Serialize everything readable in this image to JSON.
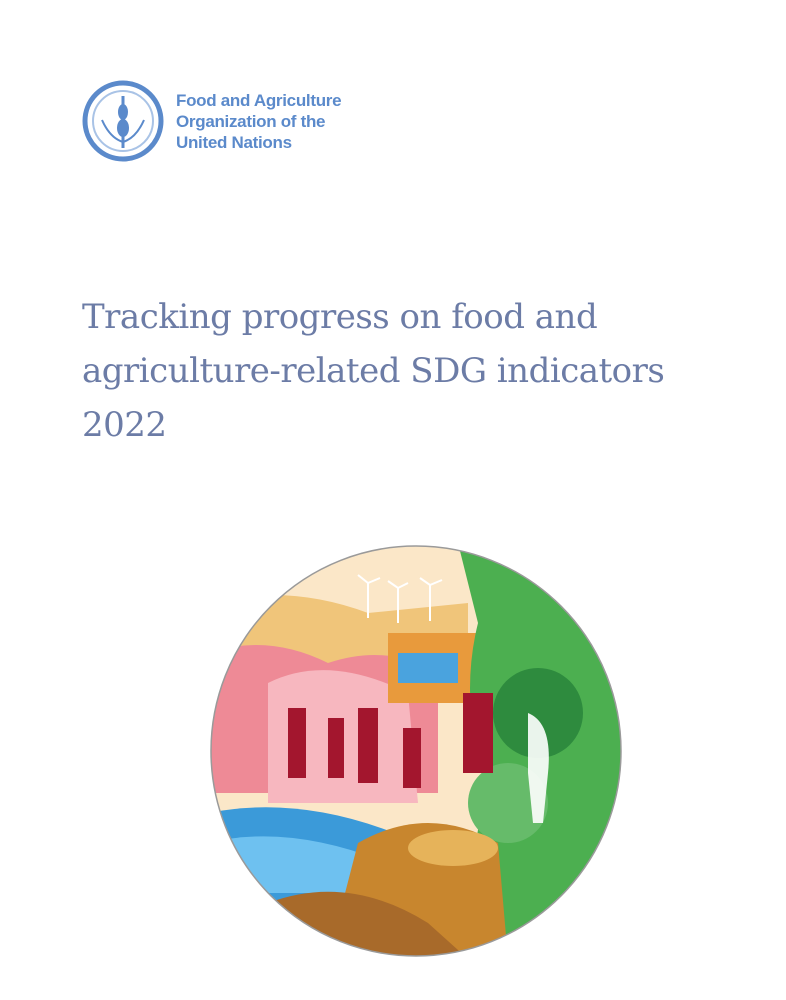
{
  "organization": {
    "name_lines": [
      "Food and Agriculture",
      "Organization of the",
      "United Nations"
    ],
    "brand_color": "#5b8acb"
  },
  "document": {
    "title_lines": [
      "Tracking progress on food and",
      "agriculture-related SDG indicators",
      "2022"
    ],
    "title_color": "#6c7ca6"
  }
}
